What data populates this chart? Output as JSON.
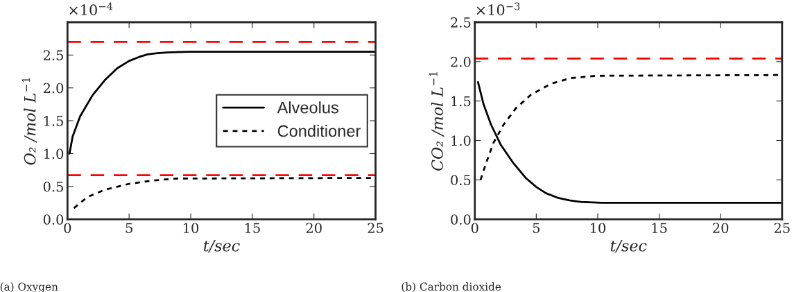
{
  "chart_data": [
    {
      "type": "line",
      "xlabel": "t/sec",
      "ylabel": "O₂ /mol L$^{−1}$",
      "xlim": [
        0,
        25
      ],
      "xticks": [
        0,
        5,
        10,
        15,
        20,
        25
      ],
      "ylim": [
        0,
        3.0
      ],
      "yticks": [
        {
          "value": 0,
          "label": "0.0"
        },
        0.5,
        {
          "value": 1,
          "label": "1.0"
        },
        1.5,
        {
          "value": 2,
          "label": "2.0"
        },
        2.5
      ],
      "grid": false,
      "legend": "right",
      "marker": "none",
      "annotations": [
        "×10$^{−4}$",
        "(a) Oxygen"
      ],
      "ref_lines": [
        {
          "axis": "y",
          "value": 2.7,
          "color": "#ff0000",
          "line_style": "dashed"
        },
        {
          "axis": "y",
          "value": 0.67,
          "color": "#ff0000",
          "line_style": "dashed"
        }
      ],
      "series": [
        {
          "name": "Alveolus",
          "color": "#000000",
          "line_style": "solid",
          "x": [
            0.16,
            0.42,
            1.03,
            2.04,
            3.04,
            4.05,
            5,
            5.8,
            6.5,
            7.3,
            8.1,
            10,
            25
          ],
          "values": [
            1.0,
            1.26,
            1.57,
            1.89,
            2.12,
            2.3,
            2.41,
            2.47,
            2.51,
            2.53,
            2.54,
            2.55,
            2.55
          ]
        },
        {
          "name": "Conditioner",
          "color": "#000000",
          "line_style": "dotted",
          "x": [
            0.52,
            1.63,
            3.04,
            5,
            6.9,
            8.9,
            25
          ],
          "values": [
            0.17,
            0.34,
            0.45,
            0.54,
            0.59,
            0.62,
            0.63
          ]
        }
      ]
    },
    {
      "type": "line",
      "xlabel": "t/sec",
      "ylabel": "CO₂ /mol L$^{−1}$",
      "xlim": [
        0,
        25
      ],
      "xticks": [
        0,
        5,
        10,
        15,
        20,
        25
      ],
      "ylim": [
        0,
        2.5
      ],
      "yticks": [
        {
          "value": 0,
          "label": "0.0"
        },
        0.5,
        {
          "value": 1,
          "label": "1.0"
        },
        1.5,
        {
          "value": 2,
          "label": "2.0"
        },
        2.5
      ],
      "grid": false,
      "legend": false,
      "marker": "none",
      "annotations": [
        "×10$^{−3}$",
        "(b) Carbon dioxide"
      ],
      "ref_lines": [
        {
          "axis": "y",
          "value": 2.04,
          "color": "#ff0000",
          "line_style": "dashed"
        }
      ],
      "series": [
        {
          "color": "#000000",
          "line_style": "solid",
          "x": [
            0.26,
            0.71,
            1.32,
            2.13,
            3.15,
            4.17,
            5.0,
            5.8,
            6.8,
            7.7,
            8.64,
            10.3,
            25
          ],
          "values": [
            1.74,
            1.46,
            1.2,
            0.94,
            0.71,
            0.52,
            0.41,
            0.33,
            0.27,
            0.24,
            0.22,
            0.21,
            0.21
          ]
        },
        {
          "color": "#000000",
          "line_style": "dotted",
          "x": [
            0.47,
            0.91,
            1.52,
            2.34,
            3.35,
            4.57,
            6.2,
            7.8,
            9.86,
            25
          ],
          "values": [
            0.5,
            0.71,
            0.97,
            1.2,
            1.41,
            1.58,
            1.72,
            1.79,
            1.82,
            1.83
          ]
        }
      ]
    }
  ]
}
